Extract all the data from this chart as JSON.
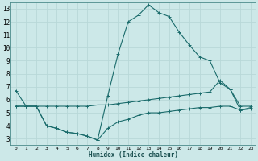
{
  "xlabel": "Humidex (Indice chaleur)",
  "background_color": "#cce8e8",
  "grid_color": "#b8d8d8",
  "line_color": "#1a6b6b",
  "xlim": [
    -0.5,
    23.5
  ],
  "ylim": [
    2.5,
    13.5
  ],
  "xticks": [
    0,
    1,
    2,
    3,
    4,
    5,
    6,
    7,
    8,
    9,
    10,
    11,
    12,
    13,
    14,
    15,
    16,
    17,
    18,
    19,
    20,
    21,
    22,
    23
  ],
  "yticks": [
    3,
    4,
    5,
    6,
    7,
    8,
    9,
    10,
    11,
    12,
    13
  ],
  "series": [
    {
      "x": [
        0,
        1,
        2,
        3,
        4,
        5,
        6,
        7,
        8,
        9,
        10,
        11,
        12,
        13,
        14,
        15,
        16,
        17,
        18,
        19,
        20,
        21,
        22,
        23
      ],
      "y": [
        6.7,
        5.5,
        5.5,
        4.0,
        3.8,
        3.5,
        3.4,
        3.2,
        2.9,
        6.3,
        9.5,
        12.0,
        12.5,
        13.3,
        12.7,
        12.4,
        11.2,
        10.2,
        9.3,
        9.0,
        7.3,
        6.8,
        5.2,
        5.4
      ]
    },
    {
      "x": [
        0,
        1,
        2,
        3,
        4,
        5,
        6,
        7,
        8,
        9,
        10,
        11,
        12,
        13,
        14,
        15,
        16,
        17,
        18,
        19,
        20,
        21,
        22,
        23
      ],
      "y": [
        5.5,
        5.5,
        5.5,
        5.5,
        5.5,
        5.5,
        5.5,
        5.5,
        5.6,
        5.6,
        5.7,
        5.8,
        5.9,
        6.0,
        6.1,
        6.2,
        6.3,
        6.4,
        6.5,
        6.6,
        7.5,
        6.8,
        5.5,
        5.5
      ]
    },
    {
      "x": [
        0,
        1,
        2,
        3,
        4,
        5,
        6,
        7,
        8,
        9,
        10,
        11,
        12,
        13,
        14,
        15,
        16,
        17,
        18,
        19,
        20,
        21,
        22,
        23
      ],
      "y": [
        5.5,
        5.5,
        5.5,
        4.0,
        3.8,
        3.5,
        3.4,
        3.2,
        2.9,
        3.8,
        4.3,
        4.5,
        4.8,
        5.0,
        5.0,
        5.1,
        5.2,
        5.3,
        5.4,
        5.4,
        5.5,
        5.5,
        5.2,
        5.3
      ]
    }
  ]
}
